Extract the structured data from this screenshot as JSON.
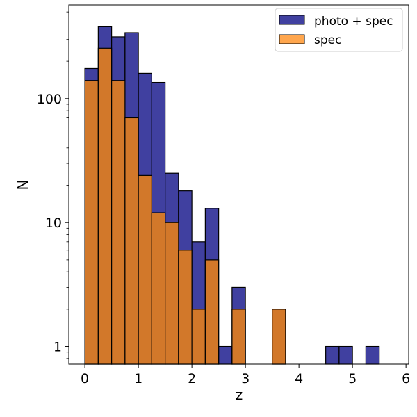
{
  "chart_data": {
    "type": "bar",
    "xlabel": "z",
    "ylabel": "N",
    "xlim": [
      -0.3,
      6.05
    ],
    "ylim_log": [
      0.72,
      570
    ],
    "y_scale": "log",
    "bin_edges": [
      0,
      0.25,
      0.5,
      0.75,
      1.0,
      1.25,
      1.5,
      1.75,
      2.0,
      2.25,
      2.5,
      2.75,
      3.0,
      3.25,
      3.5,
      3.75,
      4.0,
      4.25,
      4.5,
      4.75,
      5.0,
      5.25,
      5.5,
      5.75
    ],
    "x_ticks": [
      0,
      1,
      2,
      3,
      4,
      5,
      6
    ],
    "x_tick_labels": [
      "0",
      "1",
      "2",
      "3",
      "4",
      "5",
      "6"
    ],
    "y_ticks": [
      1,
      10,
      100
    ],
    "y_tick_labels": [
      "1",
      "10",
      "100"
    ],
    "series": [
      {
        "name": "photo + spec",
        "color": "#4040a0",
        "values": [
          175,
          380,
          315,
          340,
          160,
          135,
          25,
          18,
          7,
          13,
          1,
          3,
          0,
          0,
          2,
          0,
          0,
          0,
          1,
          1,
          0,
          1,
          0
        ]
      },
      {
        "name": "spec",
        "color": "#d2782a",
        "values": [
          140,
          255,
          140,
          70,
          24,
          12,
          10,
          6,
          2,
          5,
          0,
          2,
          0,
          0,
          2,
          0,
          0,
          0,
          0,
          0,
          0,
          0,
          0
        ]
      }
    ],
    "legend": {
      "position": "top-right",
      "entries": [
        {
          "label": "photo + spec",
          "swatch_color": "#4040a0"
        },
        {
          "label": "spec",
          "swatch_color": "#ffa64d"
        }
      ]
    },
    "grid": false
  }
}
